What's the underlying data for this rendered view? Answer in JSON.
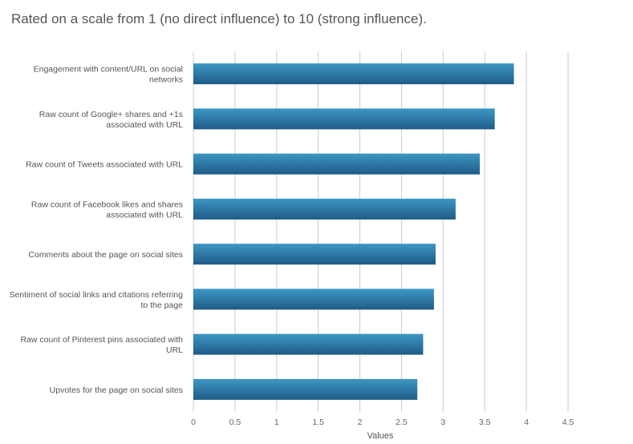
{
  "subtitle": "Rated on a scale from 1 (no direct influence) to 10 (strong influence).",
  "colors": {
    "bar_top": "#3d97c4",
    "bar_bottom": "#1f5b87",
    "grid": "#cccccc"
  },
  "chart_data": {
    "type": "bar",
    "orientation": "horizontal",
    "categories": [
      [
        "Engagement with content/URL on social",
        "networks"
      ],
      [
        "Raw count of Google+ shares and +1s",
        "associated with URL"
      ],
      [
        "Raw count of Tweets associated with URL"
      ],
      [
        "Raw count of Facebook likes and shares",
        "associated with URL"
      ],
      [
        "Comments about the page on social sites"
      ],
      [
        "Sentiment of social links and citations referring",
        "to the page"
      ],
      [
        "Raw count of Pinterest pins associated with",
        "URL"
      ],
      [
        "Upvotes for the page on social sites"
      ]
    ],
    "values": [
      3.85,
      3.62,
      3.44,
      3.15,
      2.91,
      2.89,
      2.76,
      2.69
    ],
    "xticks": [
      "0",
      "0.5",
      "1",
      "1.5",
      "2",
      "2.5",
      "3",
      "3.5",
      "4",
      "4.5"
    ],
    "xlim": [
      0,
      4.5
    ],
    "xlabel": "Values",
    "grid": true,
    "legend": "none"
  }
}
